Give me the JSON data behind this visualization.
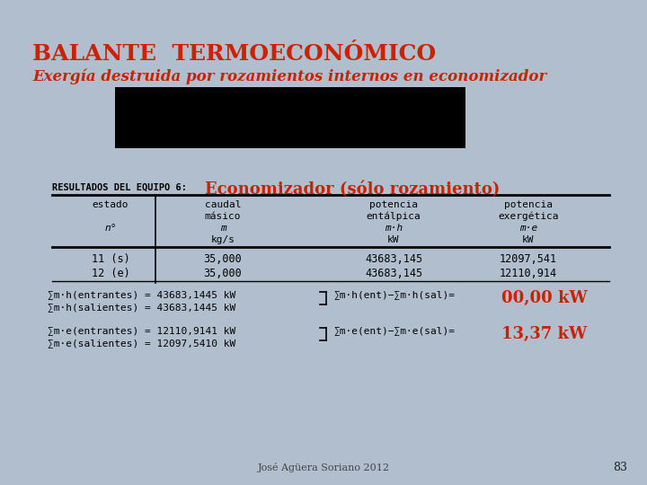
{
  "title": "BALANTE  TERMOECONÓMICO",
  "subtitle": "Exergía destruida por rozamientos internos en economizador",
  "equipo_label": "RESULTADOS DEL EQUIPO 6:",
  "equipo_name": "Economizador (sólo rozamiento)",
  "col_headers_0": [
    "estado",
    "",
    "n°",
    ""
  ],
  "col_headers_1": [
    "caudal",
    "másico",
    "m",
    "kg/s"
  ],
  "col_headers_2": [
    "potencia",
    "entálpica",
    "m·h",
    "kW"
  ],
  "col_headers_3": [
    "potencia",
    "exergética",
    "m·e",
    "kW"
  ],
  "rows": [
    [
      "11 (s)",
      "35,000",
      "43683,145",
      "12097,541"
    ],
    [
      "12 (e)",
      "35,000",
      "43683,145",
      "12110,914"
    ]
  ],
  "footer": "José Agüera Soriano 2012",
  "page_num": "83",
  "outer_bg": "#b0bece",
  "slide_bg": "#ddeee8",
  "title_color": "#cc2200",
  "subtitle_color": "#cc2200",
  "equipo_name_color": "#cc2200",
  "result_color": "#cc2200",
  "text_color": "#000000",
  "black_rect": "#000000"
}
